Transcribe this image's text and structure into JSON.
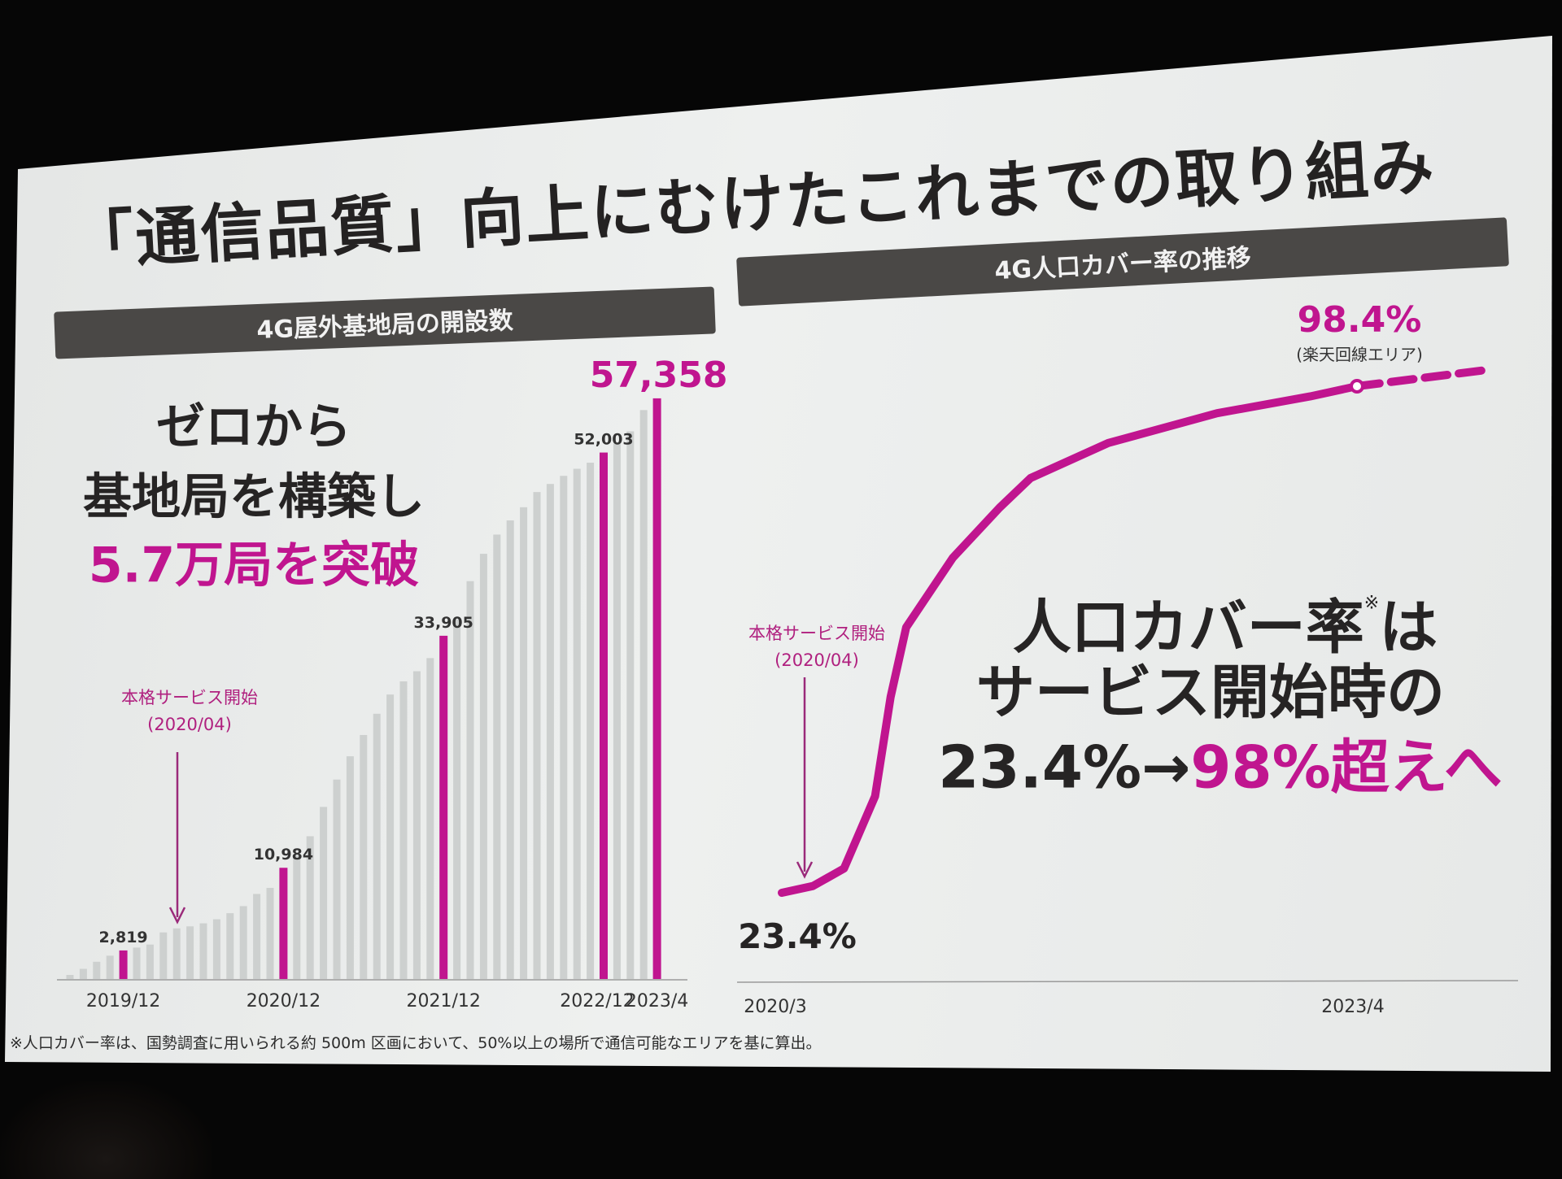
{
  "slide": {
    "title": "「通信品質」向上にむけたこれまでの取り組み",
    "left_header": "4G屋外基地局の開設数",
    "right_header": "4G人口カバー率の推移",
    "left_message": [
      "ゼロから",
      "基地局を構築し",
      "5.7万局を突破"
    ],
    "right_message": {
      "line1": "人口カバー率",
      "note_mark": "※",
      "line1_end": "は",
      "line2": "サービス開始時の",
      "line3_before": "23.4%→",
      "line3_highlight": "98%超えへ"
    },
    "annotation_left": {
      "label": "本格サービス開始",
      "date": "(2020/04)"
    },
    "annotation_right": {
      "label": "本格サービス開始",
      "date": "(2020/04)"
    },
    "footnote": "※人口カバー率は、国勢調査に用いられる約 500m 区画において、50%以上の場所で通信可能なエリアを基に算出。"
  },
  "colors": {
    "accent": "#c0158f",
    "bar_gray": "#cdd0cf",
    "header_bg": "#4a4846",
    "text_dark": "#262424"
  },
  "chart_data": [
    {
      "type": "bar",
      "categories": [
        "2019/8",
        "2019/9",
        "2019/10",
        "2019/11",
        "2019/12",
        "2020/1",
        "2020/2",
        "2020/3",
        "2020/4",
        "2020/5",
        "2020/6",
        "2020/7",
        "2020/8",
        "2020/9",
        "2020/10",
        "2020/11",
        "2020/12",
        "2021/1",
        "2021/2",
        "2021/3",
        "2021/4",
        "2021/5",
        "2021/6",
        "2021/7",
        "2021/8",
        "2021/9",
        "2021/10",
        "2021/11",
        "2021/12",
        "2022/1",
        "2022/2",
        "2022/3",
        "2022/4",
        "2022/5",
        "2022/6",
        "2022/7",
        "2022/8",
        "2022/9",
        "2022/10",
        "2022/11",
        "2022/12",
        "2023/1",
        "2023/2",
        "2023/3",
        "2023/4"
      ],
      "values": [
        400,
        1000,
        1700,
        2300,
        2819,
        3100,
        3400,
        4600,
        5000,
        5200,
        5500,
        5900,
        6500,
        7200,
        8400,
        9000,
        10984,
        12200,
        14100,
        17000,
        19700,
        22000,
        24100,
        26200,
        28100,
        29400,
        30400,
        31700,
        33905,
        35500,
        39300,
        42000,
        43900,
        45300,
        46600,
        48100,
        48900,
        49700,
        50400,
        51000,
        52003,
        52900,
        54100,
        56200,
        57358
      ],
      "highlighted": [
        "2019/12",
        "2020/12",
        "2021/12",
        "2022/12",
        "2023/4"
      ],
      "data_labels": [
        {
          "category": "2019/12",
          "text": "2,819"
        },
        {
          "category": "2020/12",
          "text": "10,984"
        },
        {
          "category": "2021/12",
          "text": "33,905"
        },
        {
          "category": "2022/12",
          "text": "52,003"
        },
        {
          "category": "2023/4",
          "text": "57,358"
        }
      ],
      "x_tick_labels": [
        {
          "category": "2019/12",
          "text": "2019/12"
        },
        {
          "category": "2020/12",
          "text": "2020/12"
        },
        {
          "category": "2021/12",
          "text": "2021/12"
        },
        {
          "category": "2022/12",
          "text": "2022/12"
        },
        {
          "category": "2023/4",
          "text": "2023/4"
        }
      ],
      "ylim": [
        0,
        60000
      ],
      "grid": false,
      "legend": "none"
    },
    {
      "type": "line",
      "x": [
        "2020/3",
        "2020/5",
        "2020/7",
        "2020/9",
        "2020/10",
        "2020/11",
        "2021/2",
        "2021/5",
        "2021/7",
        "2021/12",
        "2022/7",
        "2023/1",
        "2023/4"
      ],
      "y": [
        23.4,
        24.4,
        27,
        37.7,
        52.4,
        62.7,
        73,
        80.4,
        84.8,
        90,
        94.4,
        96.9,
        98.4
      ],
      "unit": "%",
      "projection": "dashed continuation after 2023/4",
      "data_labels": [
        {
          "x": "2020/3",
          "text": "23.4%"
        },
        {
          "x": "2023/4",
          "text": "98.4%",
          "sub": "(楽天回線エリア)"
        }
      ],
      "x_tick_labels": [
        "2020/3",
        "2023/4"
      ],
      "grid": false,
      "legend": "none"
    }
  ]
}
